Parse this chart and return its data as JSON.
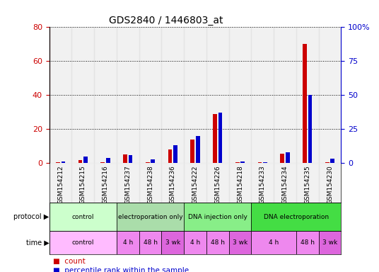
{
  "title": "GDS2840 / 1446803_at",
  "samples": [
    "GSM154212",
    "GSM154215",
    "GSM154216",
    "GSM154237",
    "GSM154238",
    "GSM154236",
    "GSM154222",
    "GSM154226",
    "GSM154218",
    "GSM154233",
    "GSM154234",
    "GSM154235",
    "GSM154230"
  ],
  "count_values": [
    0.5,
    2.0,
    0.5,
    5.0,
    0.5,
    8.0,
    14.0,
    29.0,
    0.5,
    0.5,
    5.5,
    70.0,
    0.5
  ],
  "percentile_values": [
    1.0,
    5.0,
    4.0,
    6.0,
    3.0,
    13.0,
    20.0,
    37.0,
    1.5,
    0.5,
    8.0,
    50.0,
    3.5
  ],
  "count_color": "#cc0000",
  "percentile_color": "#0000cc",
  "ylim_left": [
    0,
    80
  ],
  "ylim_right": [
    0,
    100
  ],
  "yticks_left": [
    0,
    20,
    40,
    60,
    80
  ],
  "yticks_right": [
    0,
    25,
    50,
    75,
    100
  ],
  "ytick_labels_left": [
    "0",
    "20",
    "40",
    "60",
    "80"
  ],
  "ytick_labels_right": [
    "0",
    "25",
    "50",
    "75",
    "100%"
  ],
  "protocol_groups": [
    {
      "label": "control",
      "start": 0,
      "end": 3,
      "color": "#ccffcc"
    },
    {
      "label": "electroporation only",
      "start": 3,
      "end": 6,
      "color": "#aaddaa"
    },
    {
      "label": "DNA injection only",
      "start": 6,
      "end": 9,
      "color": "#88ee88"
    },
    {
      "label": "DNA electroporation",
      "start": 9,
      "end": 13,
      "color": "#44dd44"
    }
  ],
  "time_groups": [
    {
      "label": "control",
      "start": 0,
      "end": 3,
      "color": "#ffbbff"
    },
    {
      "label": "4 h",
      "start": 3,
      "end": 4,
      "color": "#ee88ee"
    },
    {
      "label": "48 h",
      "start": 4,
      "end": 5,
      "color": "#ee88ee"
    },
    {
      "label": "3 wk",
      "start": 5,
      "end": 6,
      "color": "#dd66dd"
    },
    {
      "label": "4 h",
      "start": 6,
      "end": 7,
      "color": "#ee88ee"
    },
    {
      "label": "48 h",
      "start": 7,
      "end": 8,
      "color": "#ee88ee"
    },
    {
      "label": "3 wk",
      "start": 8,
      "end": 9,
      "color": "#dd66dd"
    },
    {
      "label": "4 h",
      "start": 9,
      "end": 11,
      "color": "#ee88ee"
    },
    {
      "label": "48 h",
      "start": 11,
      "end": 12,
      "color": "#ee88ee"
    },
    {
      "label": "3 wk",
      "start": 12,
      "end": 13,
      "color": "#dd66dd"
    }
  ],
  "bar_width": 0.18,
  "background_color": "#ffffff",
  "tick_label_color_left": "#cc0000",
  "tick_label_color_right": "#0000cc",
  "col_bg_color": "#dddddd",
  "col_bg_alpha": 0.4
}
